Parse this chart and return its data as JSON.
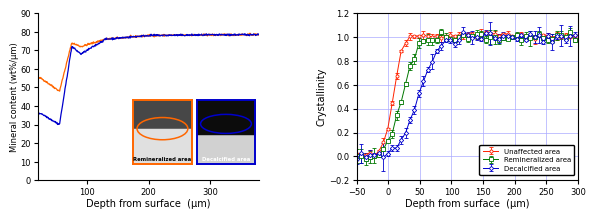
{
  "left": {
    "xlabel": "Depth from surface  (μm)",
    "ylabel": "Mineral content (wt%/μm)",
    "xlim": [
      20,
      380
    ],
    "ylim": [
      0,
      90
    ],
    "xticks": [
      100,
      200,
      300
    ],
    "yticks": [
      0,
      10,
      20,
      30,
      40,
      50,
      60,
      70,
      80,
      90
    ],
    "orange_color": "#FF6600",
    "blue_color": "#0000CC",
    "inset_orange_border": "#FF6600",
    "inset_blue_border": "#0000CC",
    "inset_label1": "Remineralized area",
    "inset_label2": "Decalcified area"
  },
  "right": {
    "xlabel": "Depth from surface  (μm)",
    "ylabel": "Crystallinity",
    "xlim": [
      -50,
      300
    ],
    "ylim": [
      -0.2,
      1.2
    ],
    "xticks": [
      -50,
      0,
      50,
      100,
      150,
      200,
      250,
      300
    ],
    "yticks": [
      -0.2,
      0.0,
      0.2,
      0.4,
      0.6,
      0.8,
      1.0,
      1.2
    ],
    "red_color": "#FF2200",
    "green_color": "#007700",
    "blue_color": "#0000CC",
    "legend_labels": [
      "Unaffected area",
      "Remineralized area",
      "Decalcified area"
    ]
  }
}
